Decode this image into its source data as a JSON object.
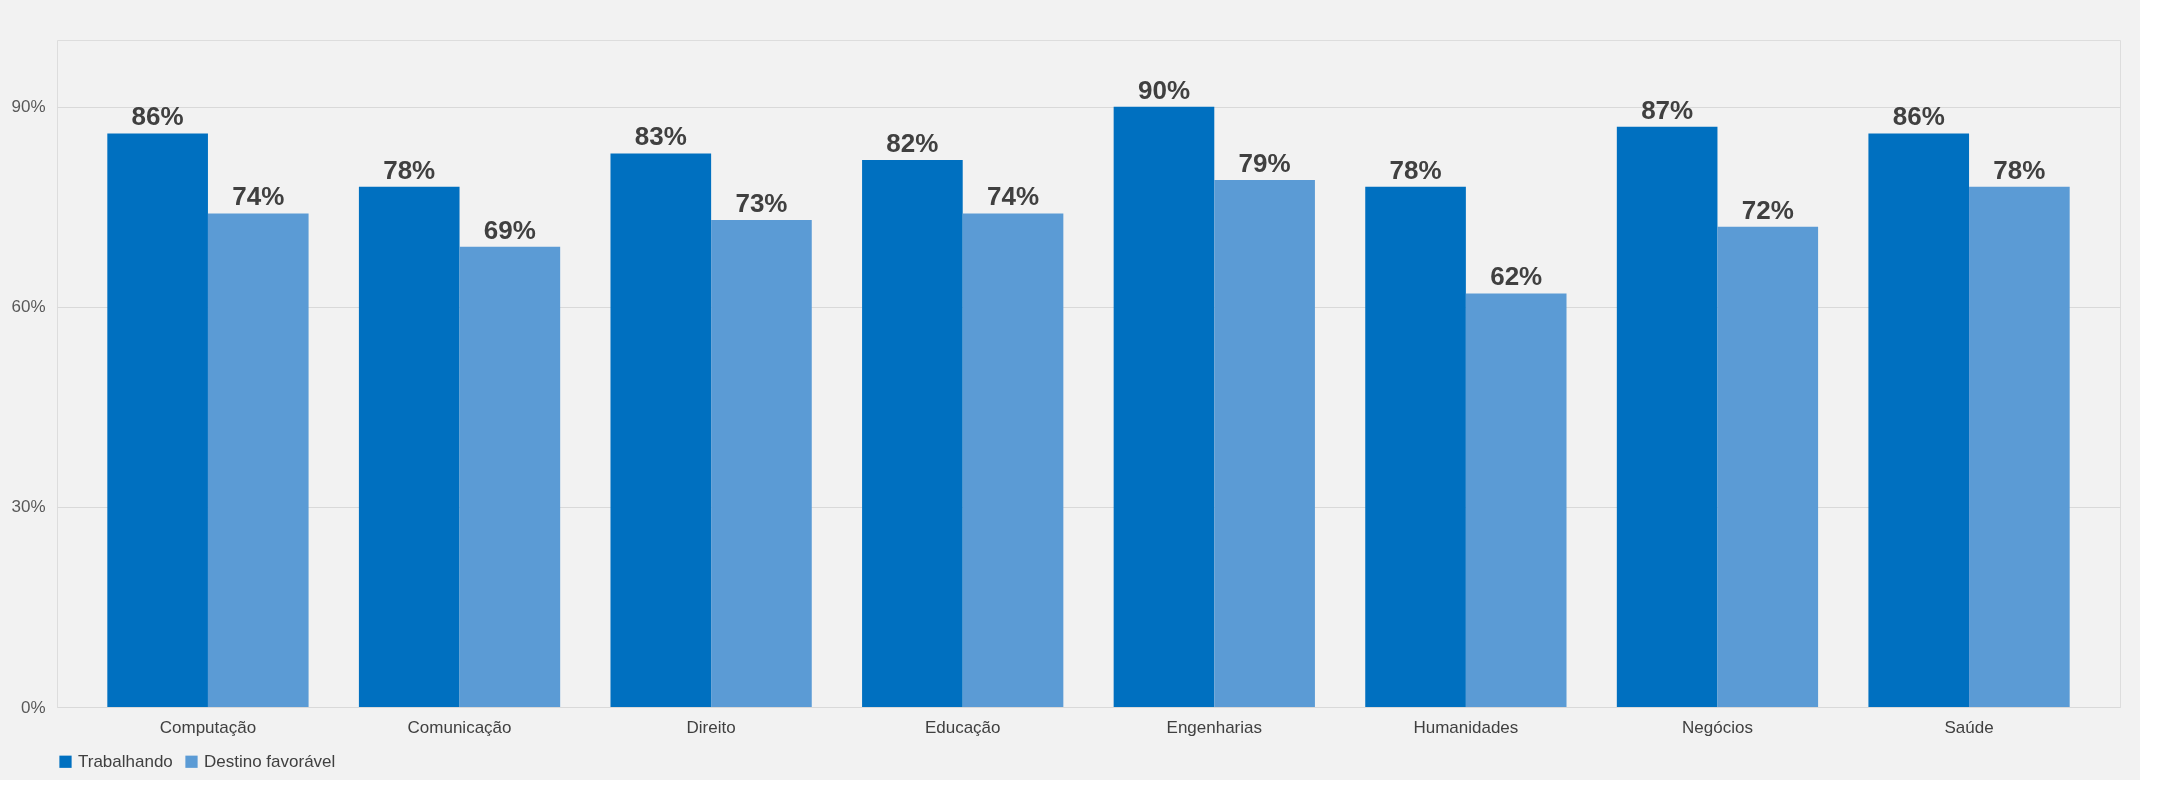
{
  "chart_data": {
    "type": "bar",
    "categories": [
      "Computação",
      "Comunicação",
      "Direito",
      "Educação",
      "Engenharias",
      "Humanidades",
      "Negócios",
      "Saúde"
    ],
    "series": [
      {
        "name": "Trabalhando",
        "color": "#0070c0",
        "values": [
          86,
          78,
          83,
          82,
          90,
          78,
          87,
          86
        ],
        "value_labels": [
          "86%",
          "78%",
          "83%",
          "82%",
          "90%",
          "78%",
          "87%",
          "86%"
        ]
      },
      {
        "name": "Destino favorável",
        "color": "#5b9bd5",
        "values": [
          74,
          69,
          73,
          74,
          79,
          62,
          72,
          78
        ],
        "value_labels": [
          "74%",
          "69%",
          "73%",
          "74%",
          "79%",
          "62%",
          "72%",
          "78%"
        ]
      }
    ],
    "ylim": [
      0,
      100
    ],
    "yticks": [
      {
        "value": 0,
        "label": "0%"
      },
      {
        "value": 30,
        "label": "30%"
      },
      {
        "value": 60,
        "label": "60%"
      },
      {
        "value": 90,
        "label": "90%"
      }
    ],
    "grid": "y",
    "legend": "bottom"
  }
}
